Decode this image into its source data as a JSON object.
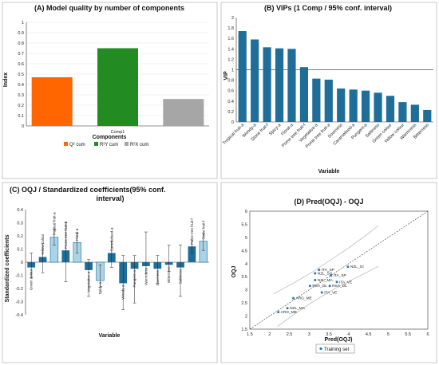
{
  "chart_data": [
    {
      "panel": "A",
      "type": "bar",
      "title": "(A) Model quality by number of components",
      "xlabel": "Components",
      "ylabel": "Index",
      "categories": [
        "Comp1"
      ],
      "ylim": [
        0,
        1
      ],
      "yticks": [
        "0",
        "0.1",
        "0.2",
        "0.3",
        "0.4",
        "0.5",
        "0.6",
        "0.7",
        "0.8",
        "0.9",
        "1"
      ],
      "series": [
        {
          "name": "Q² cum",
          "values": [
            0.47
          ],
          "color": "#FF6600"
        },
        {
          "name": "R²Y cum",
          "values": [
            0.75
          ],
          "color": "#228B22"
        },
        {
          "name": "R²X cum",
          "values": [
            0.26
          ],
          "color": "#A6A6A6"
        }
      ],
      "legend": "bottom"
    },
    {
      "panel": "B",
      "type": "bar",
      "title": "(B) VIPs (1 Comp / 95% conf. interval)",
      "xlabel": "Variable",
      "ylabel": "VIP",
      "ylim": [
        0,
        2
      ],
      "yticks": [
        "0",
        "0.2",
        "0.4",
        "0.6",
        "0.8",
        "1",
        "1.2",
        "1.4",
        "1.6",
        "1.8",
        "2"
      ],
      "reference_line": 1,
      "bar_color": "#1F6E9A",
      "categories": [
        "Tropical fruit-a",
        "Woody-a",
        "Stone fruit-f",
        "Spicy-a",
        "Floral-a",
        "Pome tree fruit-f",
        "Vegetative-a",
        "Pome tree fruit-a",
        "Sourness",
        "Caramelised-a",
        "Pungent-a",
        "Saltiness",
        "Green colour",
        "Yellow colour",
        "Warmness",
        "Bitterness"
      ],
      "values": [
        1.74,
        1.58,
        1.43,
        1.41,
        1.4,
        1.05,
        0.83,
        0.81,
        0.64,
        0.62,
        0.6,
        0.56,
        0.5,
        0.38,
        0.33,
        0.23
      ]
    },
    {
      "panel": "C",
      "type": "bar",
      "title_lines": [
        "(C) OQJ / Standardized coefficients(95% conf.",
        "interval)"
      ],
      "xlabel": "Variable",
      "ylabel": "Standardized coefficients",
      "ylim": [
        -0.4,
        0.4
      ],
      "yticks": [
        "-0.4",
        "-0.3",
        "-0.2",
        "-0.1",
        "0",
        "0.1",
        "0.2",
        "0.3",
        "0.4"
      ],
      "categories": [
        "Green colour",
        "Yellow colour",
        "Tropical fruit-a",
        "Pome tree fruit-a",
        "Floral-a",
        "Vegetative-a",
        "Spicy-a",
        "Caramelised-a",
        "Woody-a",
        "Pungent-a",
        "Warmness",
        "Sourness",
        "Bitterness",
        "Saltiness",
        "Pome tree fruit-f",
        "Stone fruit-f"
      ],
      "values": [
        -0.04,
        0.04,
        0.19,
        0.09,
        0.15,
        -0.06,
        -0.14,
        0.07,
        -0.16,
        -0.05,
        -0.03,
        -0.05,
        -0.02,
        -0.04,
        0.12,
        0.16
      ],
      "err_low": [
        -0.12,
        -0.08,
        0.13,
        -0.15,
        0.07,
        -0.26,
        -0.19,
        -0.04,
        -0.36,
        -0.31,
        -0.09,
        -0.16,
        -0.07,
        -0.26,
        0.07,
        0.09
      ],
      "err_high": [
        0.07,
        0.14,
        0.25,
        0.3,
        0.22,
        0.02,
        -0.02,
        0.16,
        0.05,
        0.05,
        0.23,
        0.05,
        0.13,
        0.13,
        0.17,
        0.22
      ],
      "highlighted": [
        false,
        false,
        true,
        false,
        true,
        false,
        true,
        false,
        false,
        false,
        false,
        false,
        false,
        false,
        false,
        true
      ],
      "dark_color": "#1F6E9A",
      "light_color": "#A9D4E8"
    },
    {
      "panel": "D",
      "type": "scatter",
      "title": "(D) Pred(OQJ) - OQJ",
      "xlabel": "Pred(OQJ)",
      "ylabel": "OQJ",
      "xlim": [
        1.5,
        6
      ],
      "ylim": [
        1.5,
        6
      ],
      "xticks": [
        "1.5",
        "2",
        "2.5",
        "3",
        "3.5",
        "4",
        "4.5",
        "5",
        "5.5",
        "6"
      ],
      "yticks": [
        "1.5",
        "2",
        "2.5",
        "3",
        "3.5",
        "4",
        "4.5",
        "5",
        "5.5",
        "6"
      ],
      "legend_label": "Training set",
      "color": "#2E75B6",
      "points": [
        {
          "label": "NZL_GI",
          "x": 3.98,
          "y": 3.88
        },
        {
          "label": "ITA_SP",
          "x": 3.25,
          "y": 3.76
        },
        {
          "label": "NZL_SG",
          "x": 3.15,
          "y": 3.63
        },
        {
          "label": "ITA_SP",
          "x": 3.55,
          "y": 3.55
        },
        {
          "label": "NZL_MA",
          "x": 3.15,
          "y": 3.37
        },
        {
          "label": "ITA_VE",
          "x": 3.7,
          "y": 3.3
        },
        {
          "label": "RSA_DL",
          "x": 3.02,
          "y": 3.15
        },
        {
          "label": "RSA_DL",
          "x": 3.52,
          "y": 3.15
        },
        {
          "label": "ITA_VE",
          "x": 3.32,
          "y": 2.9
        },
        {
          "label": "ARG_ME",
          "x": 2.6,
          "y": 2.68
        },
        {
          "label": "NZL_MA",
          "x": 2.45,
          "y": 2.3
        },
        {
          "label": "ARG_ME",
          "x": 2.22,
          "y": 2.15
        }
      ],
      "ci_upper": {
        "x": [
          2.1,
          2.6,
          3.1,
          3.5,
          4.0,
          4.5,
          4.75
        ],
        "y": [
          2.85,
          3.25,
          3.7,
          4.1,
          4.6,
          5.15,
          5.45
        ]
      },
      "ci_lower": {
        "x": [
          2.2,
          2.6,
          3.1,
          3.6,
          4.1,
          4.5,
          4.75
        ],
        "y": [
          1.6,
          2.05,
          2.55,
          3.0,
          3.4,
          3.7,
          3.9
        ]
      },
      "identity_line": true
    }
  ]
}
